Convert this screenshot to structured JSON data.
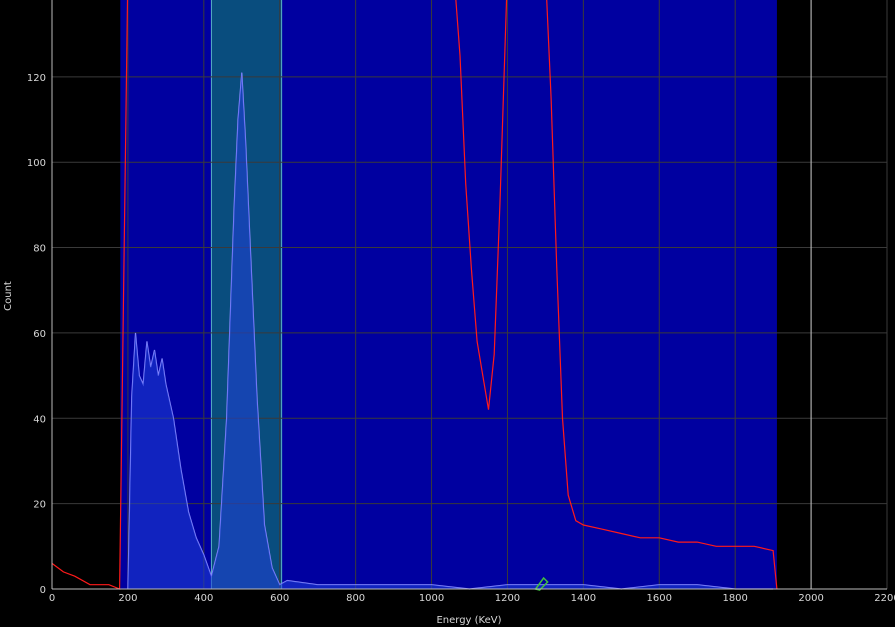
{
  "chart_data": {
    "type": "line",
    "xlabel": "Energy (KeV)",
    "ylabel": "Count",
    "xlim": [
      0,
      2200
    ],
    "ylim": [
      0,
      138
    ],
    "x_ticks": [
      "0",
      "200",
      "400",
      "600",
      "800",
      "1000",
      "1200",
      "1400",
      "1600",
      "1800",
      "2000",
      "2200"
    ],
    "y_ticks": [
      "0",
      "20",
      "40",
      "60",
      "80",
      "100",
      "120"
    ],
    "grid": true,
    "region_of_interest": [
      180,
      1910
    ],
    "highlight_band": [
      420,
      605
    ],
    "marker_energy": 1290,
    "colors": {
      "background": "#000000",
      "roi_fill": "#0000a0",
      "band_fill": "#0b5a78",
      "gridline": "#3a3a3a",
      "series_red": "#ff1a1a",
      "series_blue": "#8a8aff",
      "marker": "#40c040"
    },
    "series": [
      {
        "color": "#ff1a1a",
        "x": [
          0,
          30,
          60,
          100,
          150,
          178,
          200,
          250,
          300,
          350,
          400,
          450,
          500,
          550,
          600,
          650,
          700,
          750,
          800,
          850,
          900,
          950,
          1000,
          1030,
          1060,
          1075,
          1090,
          1105,
          1120,
          1135,
          1150,
          1165,
          1180,
          1200,
          1250,
          1300,
          1315,
          1330,
          1345,
          1360,
          1380,
          1400,
          1450,
          1500,
          1550,
          1600,
          1650,
          1700,
          1750,
          1800,
          1850,
          1900,
          1910
        ],
        "y": [
          6,
          4,
          3,
          1,
          1,
          0,
          145,
          145,
          145,
          145,
          145,
          145,
          145,
          145,
          145,
          145,
          145,
          145,
          145,
          145,
          145,
          145,
          145,
          145,
          143,
          125,
          95,
          75,
          58,
          50,
          42,
          55,
          90,
          145,
          145,
          145,
          115,
          75,
          40,
          22,
          16,
          15,
          14,
          13,
          12,
          12,
          11,
          11,
          10,
          10,
          10,
          9,
          0
        ]
      },
      {
        "color": "#8a8aff",
        "x": [
          200,
          210,
          220,
          230,
          240,
          250,
          260,
          270,
          280,
          290,
          300,
          320,
          340,
          360,
          380,
          400,
          420,
          440,
          460,
          480,
          490,
          500,
          510,
          520,
          540,
          560,
          580,
          600,
          620,
          700,
          800,
          900,
          1000,
          1100,
          1200,
          1300,
          1400,
          1500,
          1600,
          1700,
          1800,
          1900
        ],
        "y": [
          0,
          45,
          60,
          50,
          48,
          58,
          52,
          56,
          50,
          54,
          48,
          40,
          28,
          18,
          12,
          8,
          3,
          10,
          40,
          90,
          110,
          121,
          105,
          85,
          45,
          15,
          5,
          1,
          2,
          1,
          1,
          1,
          1,
          0,
          1,
          1,
          1,
          0,
          1,
          1,
          0,
          0
        ]
      }
    ]
  }
}
